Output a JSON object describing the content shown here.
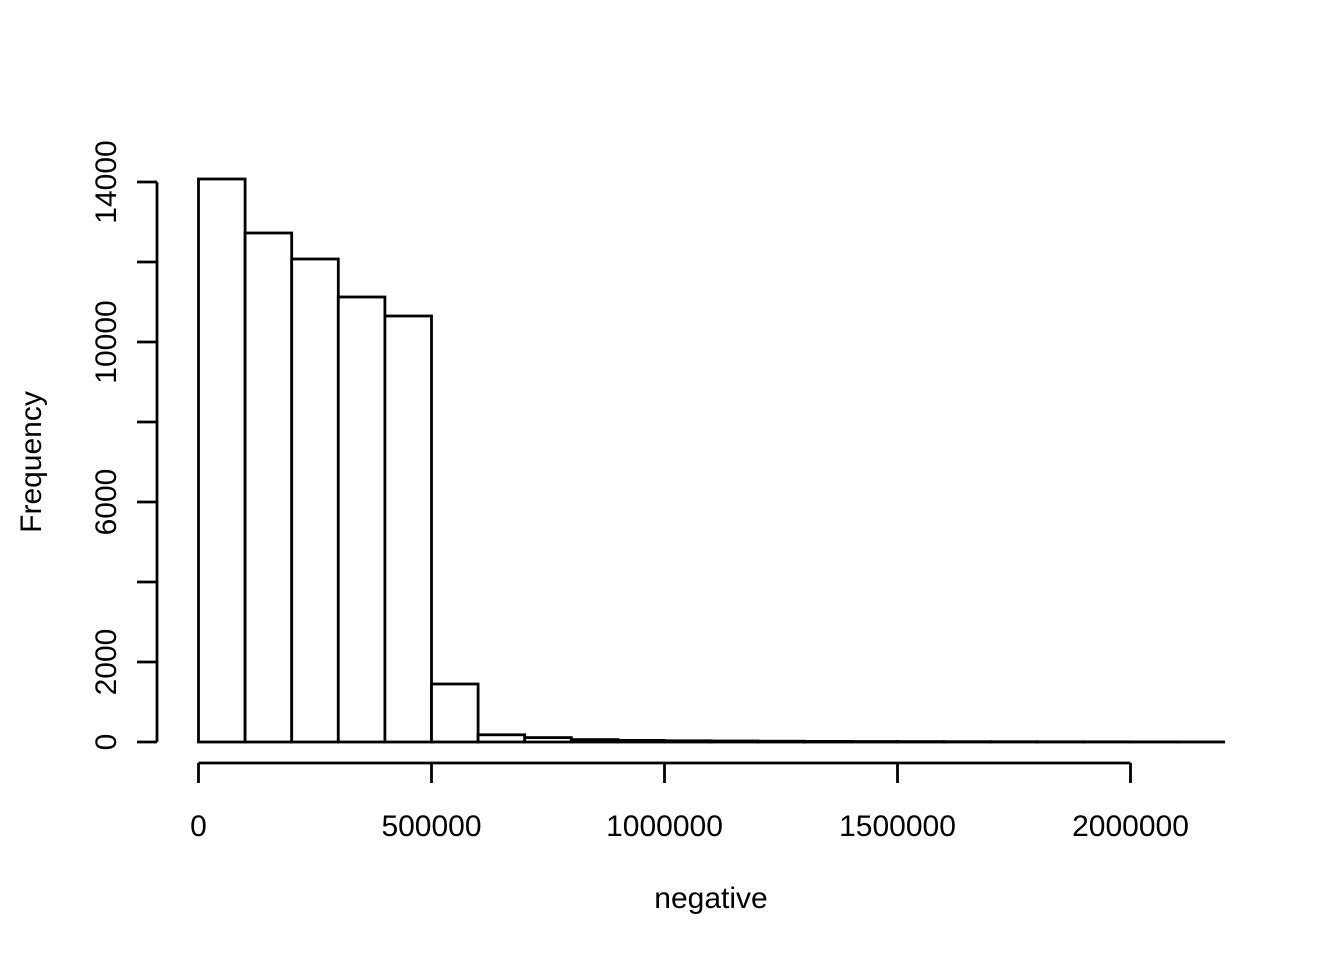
{
  "figure": {
    "background_color": "#ffffff",
    "title": ""
  },
  "chart_data": {
    "type": "bar",
    "subtype": "histogram",
    "title": "",
    "xlabel": "negative",
    "ylabel": "Frequency",
    "bar_fill_color": "#ffffff",
    "bar_stroke_color": "#000000",
    "axis_color": "#000000",
    "text_color": "#000000",
    "grid": "off",
    "legend": "none",
    "bin_start": 0,
    "bin_width": 100000,
    "counts": [
      14075,
      12725,
      12075,
      11125,
      10650,
      1450,
      180,
      110,
      60,
      40,
      30,
      25,
      20,
      15,
      12,
      10,
      8,
      6,
      5,
      4,
      3,
      2
    ],
    "xlim": [
      0,
      2200000
    ],
    "ylim": [
      0,
      14000
    ],
    "x_ticks": [
      {
        "value": 0,
        "label": "0"
      },
      {
        "value": 500000,
        "label": "500000"
      },
      {
        "value": 1000000,
        "label": "1000000"
      },
      {
        "value": 1500000,
        "label": "1500000"
      },
      {
        "value": 2000000,
        "label": "2000000"
      }
    ],
    "y_ticks": [
      {
        "value": 0,
        "label": "0"
      },
      {
        "value": 2000,
        "label": "2000"
      },
      {
        "value": 4000,
        "label": ""
      },
      {
        "value": 6000,
        "label": "6000"
      },
      {
        "value": 8000,
        "label": ""
      },
      {
        "value": 10000,
        "label": "10000"
      },
      {
        "value": 12000,
        "label": ""
      },
      {
        "value": 14000,
        "label": "14000"
      }
    ]
  }
}
